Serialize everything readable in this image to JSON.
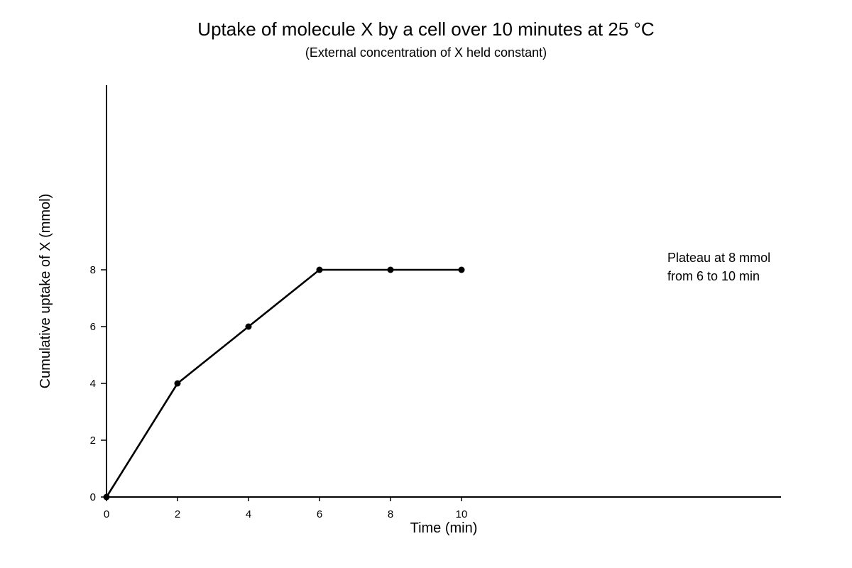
{
  "chart_data": {
    "type": "line",
    "title": "Uptake of molecule X by a cell over 10 minutes at 25 °C",
    "subtitle": "(External concentration of X held constant)",
    "xlabel": "Time (min)",
    "ylabel": "Cumulative uptake of X (mmol)",
    "x": [
      0,
      2,
      4,
      6,
      8,
      10
    ],
    "series": [
      {
        "values": [
          0,
          4,
          6,
          8,
          8,
          8
        ],
        "color": "#000000"
      }
    ],
    "x_ticks": [
      "0",
      "2",
      "4",
      "6",
      "8",
      "10"
    ],
    "y_ticks": [
      "0",
      "2",
      "4",
      "6",
      "8"
    ],
    "xlim": [
      0,
      19
    ],
    "ylim": [
      0,
      14.5
    ],
    "grid": false,
    "legend": "none",
    "plateau": {
      "from_x": 6,
      "to_x": 10,
      "value": 8,
      "line_style": "dashed",
      "color": "#777777"
    },
    "annotation": {
      "lines": [
        "Plateau at 8 mmol",
        "from 6 to 10 min"
      ],
      "anchor_x": 15.8,
      "anchor_y": 8
    }
  }
}
